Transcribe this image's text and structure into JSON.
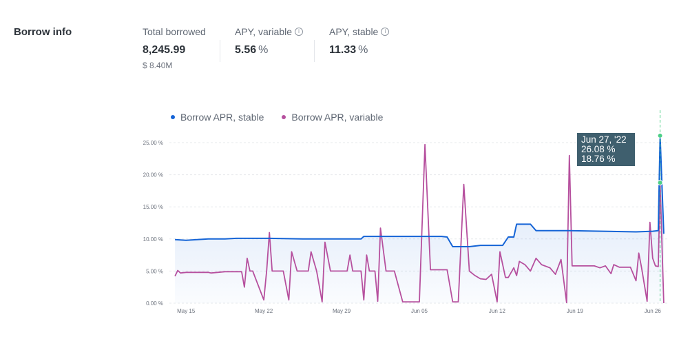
{
  "section": {
    "title": "Borrow info"
  },
  "stats": {
    "total_borrowed": {
      "label": "Total borrowed",
      "value": "8,245.99",
      "sub": "$ 8.40M"
    },
    "apy_variable": {
      "label": "APY, variable",
      "value": "5.56",
      "unit": "%",
      "info_icon": "info-icon"
    },
    "apy_stable": {
      "label": "APY, stable",
      "value": "11.33",
      "unit": "%",
      "info_icon": "info-icon"
    }
  },
  "tooltip": {
    "date": "Jun 27, '22",
    "stable": "26.08 %",
    "variable": "18.76 %"
  },
  "colors": {
    "stable": "#1564d6",
    "variable": "#b6509e",
    "cursor": "#4ccf86",
    "tooltip_bg": "#3f5f6e"
  },
  "chart_data": {
    "type": "line",
    "title": "",
    "xlabel": "",
    "ylabel": "",
    "ylim": [
      0,
      25
    ],
    "y_ticks": [
      "0.00 %",
      "5.00 %",
      "10.00 %",
      "15.00 %",
      "20.00 %",
      "25.00 %"
    ],
    "y_tick_values": [
      0,
      5,
      10,
      15,
      20,
      25
    ],
    "x_range": [
      "2022-05-14",
      "2022-06-28"
    ],
    "x_ticks": [
      "May 15",
      "May 22",
      "May 29",
      "Jun 05",
      "Jun 12",
      "Jun 19",
      "Jun 26"
    ],
    "x_tick_dates": [
      "2022-05-15",
      "2022-05-22",
      "2022-05-29",
      "2022-06-05",
      "2022-06-12",
      "2022-06-19",
      "2022-06-26"
    ],
    "grid": true,
    "legend_position": "top-left",
    "series": [
      {
        "name": "Borrow APR, stable",
        "area": true,
        "points": [
          [
            "2022-05-14T12:00",
            9.9
          ],
          [
            "2022-05-15T12:00",
            9.8
          ],
          [
            "2022-05-17T12:00",
            10.0
          ],
          [
            "2022-05-19T00:00",
            10.0
          ],
          [
            "2022-05-20T00:00",
            10.1
          ],
          [
            "2022-05-23T00:00",
            10.1
          ],
          [
            "2022-05-26T00:00",
            10.0
          ],
          [
            "2022-05-29T00:00",
            10.0
          ],
          [
            "2022-05-31T06:00",
            10.0
          ],
          [
            "2022-05-31T12:00",
            10.4
          ],
          [
            "2022-06-04T00:00",
            10.4
          ],
          [
            "2022-06-07T12:00",
            10.4
          ],
          [
            "2022-06-08T00:00",
            10.3
          ],
          [
            "2022-06-08T12:00",
            8.8
          ],
          [
            "2022-06-10T00:00",
            8.8
          ],
          [
            "2022-06-11T00:00",
            9.0
          ],
          [
            "2022-06-13T00:00",
            9.0
          ],
          [
            "2022-06-13T12:00",
            10.3
          ],
          [
            "2022-06-14T00:00",
            10.3
          ],
          [
            "2022-06-14T06:00",
            12.3
          ],
          [
            "2022-06-15T12:00",
            12.3
          ],
          [
            "2022-06-16T00:00",
            11.3
          ],
          [
            "2022-06-19T00:00",
            11.3
          ],
          [
            "2022-06-22T00:00",
            11.2
          ],
          [
            "2022-06-25T00:00",
            11.1
          ],
          [
            "2022-06-26T12:00",
            11.2
          ],
          [
            "2022-06-27T00:00",
            11.3
          ],
          [
            "2022-06-27T04:00",
            26.08
          ],
          [
            "2022-06-27T12:00",
            10.8
          ]
        ]
      },
      {
        "name": "Borrow APR, variable",
        "area": false,
        "points": [
          [
            "2022-05-14T12:00",
            4.2
          ],
          [
            "2022-05-14T18:00",
            5.1
          ],
          [
            "2022-05-15T00:00",
            4.7
          ],
          [
            "2022-05-15T12:00",
            4.8
          ],
          [
            "2022-05-17T12:00",
            4.8
          ],
          [
            "2022-05-17T18:00",
            4.7
          ],
          [
            "2022-05-19T00:00",
            4.9
          ],
          [
            "2022-05-20T12:00",
            4.9
          ],
          [
            "2022-05-20T18:00",
            2.5
          ],
          [
            "2022-05-21T00:00",
            7.0
          ],
          [
            "2022-05-21T06:00",
            5.0
          ],
          [
            "2022-05-21T12:00",
            5.0
          ],
          [
            "2022-05-22T12:00",
            0.5
          ],
          [
            "2022-05-22T18:00",
            5.0
          ],
          [
            "2022-05-23T00:00",
            11.0
          ],
          [
            "2022-05-23T06:00",
            5.0
          ],
          [
            "2022-05-24T06:00",
            5.0
          ],
          [
            "2022-05-24T18:00",
            0.5
          ],
          [
            "2022-05-25T00:00",
            8.0
          ],
          [
            "2022-05-25T12:00",
            5.0
          ],
          [
            "2022-05-26T12:00",
            5.0
          ],
          [
            "2022-05-26T18:00",
            8.0
          ],
          [
            "2022-05-27T06:00",
            5.0
          ],
          [
            "2022-05-27T18:00",
            0.2
          ],
          [
            "2022-05-28T00:00",
            9.5
          ],
          [
            "2022-05-28T12:00",
            5.0
          ],
          [
            "2022-05-30T00:00",
            5.0
          ],
          [
            "2022-05-30T06:00",
            7.5
          ],
          [
            "2022-05-30T12:00",
            5.0
          ],
          [
            "2022-05-31T06:00",
            5.0
          ],
          [
            "2022-05-31T12:00",
            0.5
          ],
          [
            "2022-05-31T18:00",
            7.5
          ],
          [
            "2022-06-01T00:00",
            5.0
          ],
          [
            "2022-06-01T12:00",
            5.0
          ],
          [
            "2022-06-01T18:00",
            0.3
          ],
          [
            "2022-06-02T00:00",
            11.7
          ],
          [
            "2022-06-02T12:00",
            5.0
          ],
          [
            "2022-06-03T06:00",
            5.0
          ],
          [
            "2022-06-04T00:00",
            0.2
          ],
          [
            "2022-06-05T00:00",
            0.2
          ],
          [
            "2022-06-05T12:00",
            0.2
          ],
          [
            "2022-06-06T00:00",
            24.7
          ],
          [
            "2022-06-06T12:00",
            5.2
          ],
          [
            "2022-06-08T00:00",
            5.2
          ],
          [
            "2022-06-08T12:00",
            0.2
          ],
          [
            "2022-06-09T00:00",
            0.2
          ],
          [
            "2022-06-09T12:00",
            18.5
          ],
          [
            "2022-06-10T00:00",
            5.0
          ],
          [
            "2022-06-10T12:00",
            4.3
          ],
          [
            "2022-06-11T00:00",
            3.8
          ],
          [
            "2022-06-11T12:00",
            3.7
          ],
          [
            "2022-06-12T00:00",
            4.5
          ],
          [
            "2022-06-12T12:00",
            0.2
          ],
          [
            "2022-06-12T18:00",
            8.0
          ],
          [
            "2022-06-13T06:00",
            4.0
          ],
          [
            "2022-06-13T12:00",
            4.0
          ],
          [
            "2022-06-14T00:00",
            5.5
          ],
          [
            "2022-06-14T06:00",
            4.3
          ],
          [
            "2022-06-14T12:00",
            6.5
          ],
          [
            "2022-06-15T00:00",
            6.0
          ],
          [
            "2022-06-15T12:00",
            5.0
          ],
          [
            "2022-06-16T00:00",
            7.0
          ],
          [
            "2022-06-16T12:00",
            6.0
          ],
          [
            "2022-06-17T06:00",
            5.5
          ],
          [
            "2022-06-17T18:00",
            4.5
          ],
          [
            "2022-06-18T06:00",
            6.8
          ],
          [
            "2022-06-18T18:00",
            0.1
          ],
          [
            "2022-06-19T00:00",
            23.0
          ],
          [
            "2022-06-19T06:00",
            5.8
          ],
          [
            "2022-06-21T06:00",
            5.8
          ],
          [
            "2022-06-21T18:00",
            5.5
          ],
          [
            "2022-06-22T06:00",
            5.8
          ],
          [
            "2022-06-22T18:00",
            4.6
          ],
          [
            "2022-06-23T00:00",
            6.0
          ],
          [
            "2022-06-23T12:00",
            5.6
          ],
          [
            "2022-06-24T12:00",
            5.6
          ],
          [
            "2022-06-25T00:00",
            3.5
          ],
          [
            "2022-06-25T06:00",
            7.8
          ],
          [
            "2022-06-25T12:00",
            5.5
          ],
          [
            "2022-06-26T00:00",
            0.3
          ],
          [
            "2022-06-26T06:00",
            12.6
          ],
          [
            "2022-06-26T12:00",
            7.0
          ],
          [
            "2022-06-26T18:00",
            5.8
          ],
          [
            "2022-06-27T00:00",
            5.7
          ],
          [
            "2022-06-27T04:00",
            18.76
          ],
          [
            "2022-06-27T12:00",
            0.0
          ]
        ]
      }
    ],
    "hover": {
      "date": "2022-06-27T04:00",
      "values": [
        26.08,
        18.76
      ]
    }
  }
}
